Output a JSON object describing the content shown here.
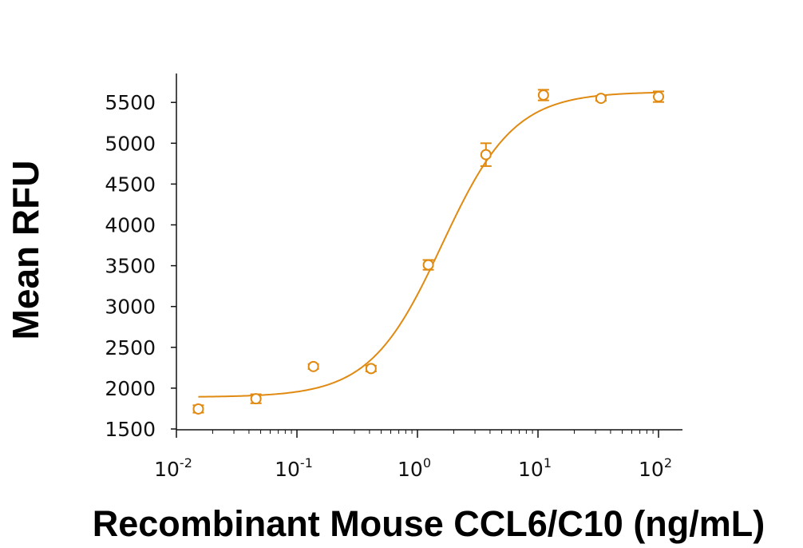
{
  "chart_data": {
    "type": "scatter",
    "title": "",
    "xlabel": "Recombinant Mouse CCL6/C10 (ng/mL)",
    "ylabel": "Mean RFU",
    "x_scale": "log",
    "xlim": [
      0.01,
      100
    ],
    "ylim": [
      1500,
      5700
    ],
    "grid": false,
    "legend": "none",
    "color": "#E08A12",
    "x_ticks": [
      {
        "value": 0.01,
        "base": "10",
        "exp": "-2"
      },
      {
        "value": 0.1,
        "base": "10",
        "exp": "-1"
      },
      {
        "value": 1,
        "base": "10",
        "exp": "0"
      },
      {
        "value": 10,
        "base": "10",
        "exp": "1"
      },
      {
        "value": 100,
        "base": "10",
        "exp": "2"
      }
    ],
    "y_ticks": [
      {
        "value": 1500,
        "label": "1500"
      },
      {
        "value": 2000,
        "label": "2000"
      },
      {
        "value": 2500,
        "label": "2500"
      },
      {
        "value": 3000,
        "label": "3000"
      },
      {
        "value": 3500,
        "label": "3500"
      },
      {
        "value": 4000,
        "label": "4000"
      },
      {
        "value": 4500,
        "label": "4500"
      },
      {
        "value": 5000,
        "label": "5000"
      },
      {
        "value": 5500,
        "label": "5500"
      }
    ],
    "points": [
      {
        "x": 0.0152,
        "y": 1745,
        "err": 45
      },
      {
        "x": 0.0457,
        "y": 1870,
        "err": 55
      },
      {
        "x": 0.137,
        "y": 2265,
        "err": 30
      },
      {
        "x": 0.412,
        "y": 2240,
        "err": 35
      },
      {
        "x": 1.23,
        "y": 3510,
        "err": 60
      },
      {
        "x": 3.7,
        "y": 4860,
        "err": 140
      },
      {
        "x": 11.1,
        "y": 5590,
        "err": 65
      },
      {
        "x": 33.3,
        "y": 5550,
        "err": 30
      },
      {
        "x": 100,
        "y": 5570,
        "err": 65
      }
    ],
    "fit": {
      "model": "4PL",
      "bottom": 1890,
      "top": 5630,
      "ec50": 1.6,
      "hill": 1.45,
      "x_range": [
        0.0152,
        100
      ]
    }
  }
}
